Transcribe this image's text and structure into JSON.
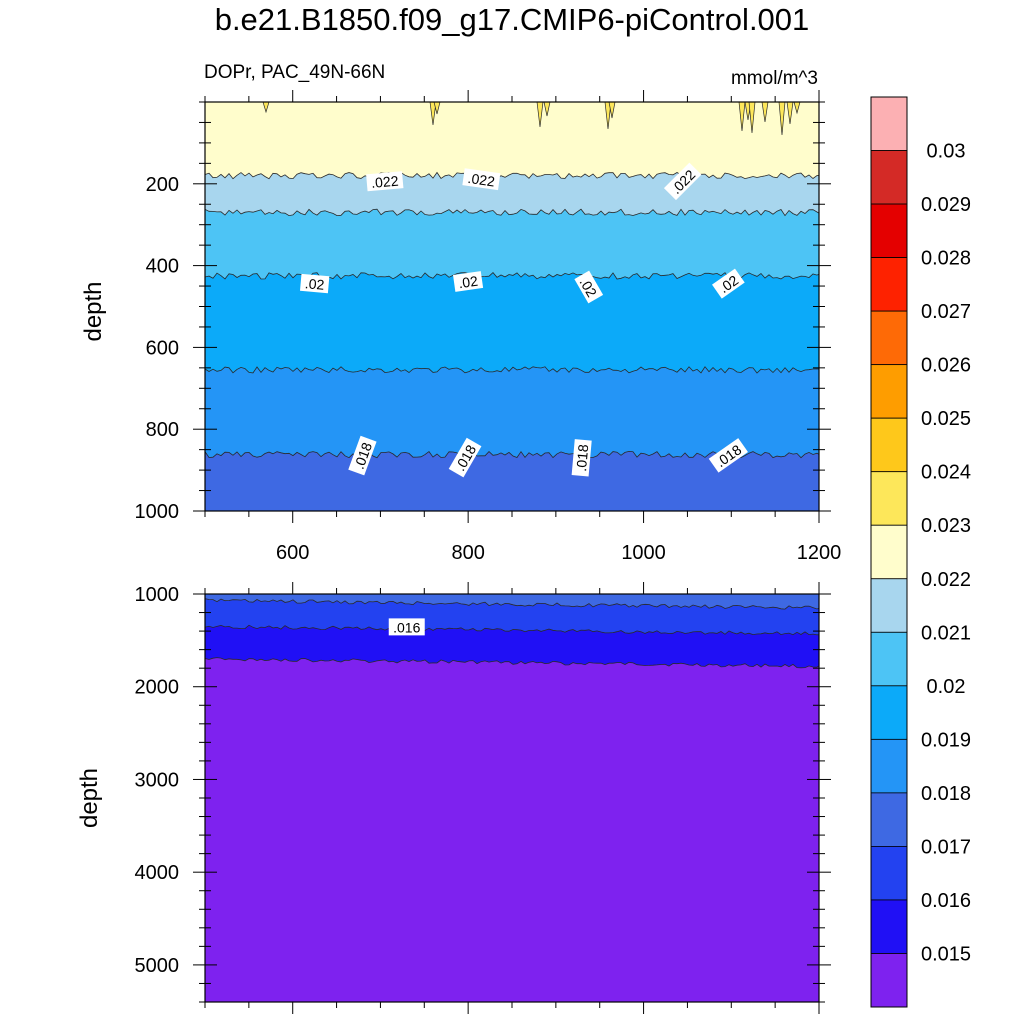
{
  "title": "b.e21.B1850.f09_g17.CMIP6-piControl.001",
  "subtitle_left": "DOPr, PAC_49N-66N",
  "subtitle_right": "mmol/m^3",
  "chart_data": [
    {
      "type": "contour",
      "panel": "upper",
      "xlabel": "",
      "ylabel": "depth",
      "xlim": [
        500,
        1200
      ],
      "ylim": [
        1000,
        0
      ],
      "xticks": [
        600,
        800,
        1000,
        1200
      ],
      "yticks": [
        200,
        400,
        600,
        800,
        1000
      ],
      "bands": [
        {
          "from": 0,
          "to": 180,
          "range": "0.022-0.023",
          "color": "#fffdcc"
        },
        {
          "from": 180,
          "to": 270,
          "range": "0.021-0.022",
          "color": "#a8d6ee"
        },
        {
          "from": 270,
          "to": 425,
          "range": "0.02-0.021",
          "color": "#4dc4f5"
        },
        {
          "from": 425,
          "to": 655,
          "range": "0.019-0.02",
          "color": "#0caaf9"
        },
        {
          "from": 655,
          "to": 862,
          "range": "0.018-0.019",
          "color": "#2495f6"
        },
        {
          "from": 862,
          "to": 1000,
          "range": "0.017-0.018",
          "color": "#3e69e3"
        }
      ],
      "contour_labels": [
        {
          "text": ".022",
          "x": 705,
          "y": 195,
          "angle": -5
        },
        {
          "text": ".022",
          "x": 815,
          "y": 190,
          "angle": 8
        },
        {
          "text": ".022",
          "x": 1045,
          "y": 195,
          "angle": -45
        },
        {
          "text": ".02",
          "x": 625,
          "y": 445,
          "angle": 5
        },
        {
          "text": ".02",
          "x": 800,
          "y": 440,
          "angle": -8
        },
        {
          "text": ".02",
          "x": 937,
          "y": 453,
          "angle": 60
        },
        {
          "text": ".02",
          "x": 1097,
          "y": 445,
          "angle": -35
        },
        {
          "text": ".018",
          "x": 680,
          "y": 865,
          "angle": -70
        },
        {
          "text": ".018",
          "x": 797,
          "y": 870,
          "angle": -60
        },
        {
          "text": ".018",
          "x": 930,
          "y": 870,
          "angle": -85
        },
        {
          "text": ".018",
          "x": 1097,
          "y": 865,
          "angle": -35
        }
      ]
    },
    {
      "type": "contour",
      "panel": "lower",
      "xlabel": "",
      "ylabel": "depth",
      "xlim": [
        500,
        1200
      ],
      "ylim": [
        5400,
        1000
      ],
      "yticks": [
        1000,
        2000,
        3000,
        4000,
        5000
      ],
      "bands": [
        {
          "from": 1000,
          "to": 1070,
          "range": "0.017-0.018",
          "color": "#3e69e3"
        },
        {
          "from": 1070,
          "to": 1350,
          "range": "0.016-0.017",
          "color": "#2342f0"
        },
        {
          "from": 1350,
          "to": 1700,
          "range": "0.015-0.016",
          "color": "#2010f5"
        },
        {
          "from": 1700,
          "to": 5400,
          "range": "<0.015",
          "color": "#7e22ef"
        }
      ],
      "contour_labels": [
        {
          "text": ".016",
          "x": 730,
          "y": 1360,
          "angle": 0
        }
      ]
    }
  ],
  "colorbar": {
    "labels": [
      "0.03",
      "0.029",
      "0.028",
      "0.027",
      "0.026",
      "0.025",
      "0.024",
      "0.023",
      "0.022",
      "0.021",
      "0.02",
      "0.019",
      "0.018",
      "0.017",
      "0.016",
      "0.015"
    ],
    "colors": [
      "#fcb0b3",
      "#d42a26",
      "#e40000",
      "#fe2200",
      "#fe6a06",
      "#fe9d00",
      "#fec81b",
      "#fde75a",
      "#fffdcc",
      "#a8d6ee",
      "#4dc4f5",
      "#0caaf9",
      "#2495f6",
      "#3e69e3",
      "#2342f0",
      "#2010f5",
      "#7e22ef"
    ]
  }
}
